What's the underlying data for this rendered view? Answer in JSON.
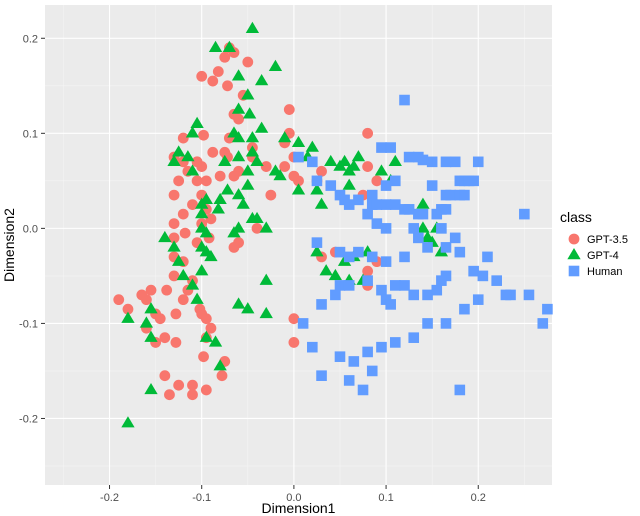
{
  "chart_data": {
    "type": "scatter",
    "title": "",
    "xlabel": "Dimension1",
    "ylabel": "Dimension2",
    "xlim": [
      -0.27,
      0.28
    ],
    "ylim": [
      -0.27,
      0.235
    ],
    "x_ticks": [
      -0.2,
      -0.1,
      0.0,
      0.1,
      0.2
    ],
    "x_tick_labels": [
      "-0.2",
      "-0.1",
      "0.0",
      "0.1",
      "0.2"
    ],
    "y_ticks": [
      -0.2,
      -0.1,
      0.0,
      0.1,
      0.2
    ],
    "y_tick_labels": [
      "-0.2",
      "-0.1",
      "0.0",
      "0.1",
      "0.2"
    ],
    "grid": true,
    "background": "#ebebeb",
    "legend": {
      "title": "class",
      "position": "right",
      "entries": [
        {
          "label": "GPT-3.5",
          "color": "#f8766d",
          "shape": "circle"
        },
        {
          "label": "GPT-4",
          "color": "#00ba38",
          "shape": "triangle"
        },
        {
          "label": "Human",
          "color": "#619cff",
          "shape": "square"
        }
      ]
    },
    "series": [
      {
        "name": "GPT-3.5",
        "color": "#f8766d",
        "shape": "circle",
        "points": [
          [
            -0.065,
            0.185
          ],
          [
            -0.075,
            0.18
          ],
          [
            -0.07,
            0.19
          ],
          [
            -0.082,
            0.165
          ],
          [
            -0.1,
            0.16
          ],
          [
            -0.088,
            0.155
          ],
          [
            -0.072,
            0.15
          ],
          [
            -0.05,
            0.175
          ],
          [
            -0.055,
            0.14
          ],
          [
            -0.06,
            0.115
          ],
          [
            -0.065,
            0.12
          ],
          [
            -0.07,
            0.095
          ],
          [
            -0.098,
            0.098
          ],
          [
            -0.12,
            0.095
          ],
          [
            -0.13,
            0.075
          ],
          [
            -0.12,
            0.07
          ],
          [
            -0.105,
            0.07
          ],
          [
            -0.1,
            0.065
          ],
          [
            -0.075,
            0.08
          ],
          [
            -0.072,
            0.075
          ],
          [
            -0.088,
            0.08
          ],
          [
            -0.045,
            0.075
          ],
          [
            -0.045,
            0.085
          ],
          [
            -0.03,
            0.065
          ],
          [
            -0.06,
            0.06
          ],
          [
            -0.065,
            0.055
          ],
          [
            -0.08,
            0.055
          ],
          [
            -0.095,
            0.05
          ],
          [
            -0.105,
            0.05
          ],
          [
            -0.115,
            0.06
          ],
          [
            -0.125,
            0.05
          ],
          [
            -0.13,
            0.035
          ],
          [
            -0.1,
            0.035
          ],
          [
            -0.11,
            0.025
          ],
          [
            -0.095,
            0.02
          ],
          [
            -0.1,
            0.005
          ],
          [
            -0.09,
            0.01
          ],
          [
            -0.12,
            0.015
          ],
          [
            -0.13,
            0.005
          ],
          [
            -0.118,
            -0.005
          ],
          [
            -0.13,
            -0.01
          ],
          [
            -0.092,
            -0.01
          ],
          [
            -0.105,
            -0.015
          ],
          [
            -0.13,
            -0.03
          ],
          [
            -0.12,
            -0.035
          ],
          [
            -0.06,
            -0.015
          ],
          [
            -0.065,
            -0.02
          ],
          [
            -0.04,
            0.0
          ],
          [
            -0.025,
            0.035
          ],
          [
            -0.01,
            0.065
          ],
          [
            0.0,
            0.075
          ],
          [
            -0.01,
            0.09
          ],
          [
            -0.005,
            0.1
          ],
          [
            -0.005,
            0.125
          ],
          [
            0.03,
            0.06
          ],
          [
            0.025,
            0.05
          ],
          [
            0.005,
            0.05
          ],
          [
            0.0,
            0.055
          ],
          [
            0.08,
            0.065
          ],
          [
            0.08,
            0.1
          ],
          [
            0.09,
            0.05
          ],
          [
            0.075,
            0.035
          ],
          [
            -0.11,
            -0.055
          ],
          [
            -0.115,
            -0.065
          ],
          [
            -0.13,
            -0.05
          ],
          [
            -0.138,
            -0.065
          ],
          [
            -0.12,
            -0.075
          ],
          [
            -0.155,
            -0.065
          ],
          [
            -0.16,
            -0.075
          ],
          [
            -0.165,
            -0.07
          ],
          [
            -0.19,
            -0.075
          ],
          [
            -0.18,
            -0.085
          ],
          [
            -0.15,
            -0.09
          ],
          [
            -0.145,
            -0.095
          ],
          [
            -0.128,
            -0.09
          ],
          [
            -0.1,
            -0.09
          ],
          [
            -0.095,
            -0.095
          ],
          [
            -0.09,
            -0.105
          ],
          [
            -0.102,
            -0.085
          ],
          [
            -0.14,
            -0.115
          ],
          [
            -0.16,
            -0.105
          ],
          [
            -0.128,
            -0.12
          ],
          [
            -0.095,
            -0.115
          ],
          [
            -0.098,
            -0.135
          ],
          [
            -0.15,
            -0.12
          ],
          [
            -0.075,
            -0.14
          ],
          [
            -0.078,
            -0.155
          ],
          [
            -0.095,
            -0.17
          ],
          [
            -0.11,
            -0.165
          ],
          [
            -0.11,
            -0.175
          ],
          [
            -0.14,
            -0.155
          ],
          [
            -0.125,
            -0.165
          ],
          [
            -0.135,
            -0.175
          ],
          [
            0.0,
            -0.12
          ],
          [
            0.0,
            -0.095
          ],
          [
            0.03,
            -0.03
          ],
          [
            0.045,
            -0.025
          ],
          [
            0.08,
            -0.045
          ],
          [
            0.08,
            -0.06
          ],
          [
            0.09,
            -0.035
          ]
        ]
      },
      {
        "name": "GPT-4",
        "color": "#00ba38",
        "shape": "triangle",
        "points": [
          [
            -0.045,
            0.21
          ],
          [
            -0.085,
            0.19
          ],
          [
            -0.07,
            0.19
          ],
          [
            -0.02,
            0.17
          ],
          [
            -0.06,
            0.16
          ],
          [
            -0.035,
            0.155
          ],
          [
            -0.05,
            0.14
          ],
          [
            -0.06,
            0.125
          ],
          [
            -0.048,
            0.12
          ],
          [
            -0.105,
            0.11
          ],
          [
            -0.11,
            0.1
          ],
          [
            -0.065,
            0.1
          ],
          [
            -0.06,
            0.095
          ],
          [
            -0.045,
            0.095
          ],
          [
            -0.035,
            0.105
          ],
          [
            -0.125,
            0.08
          ],
          [
            -0.13,
            0.07
          ],
          [
            -0.115,
            0.075
          ],
          [
            -0.11,
            0.06
          ],
          [
            -0.075,
            0.07
          ],
          [
            -0.06,
            0.075
          ],
          [
            -0.05,
            0.06
          ],
          [
            -0.045,
            0.08
          ],
          [
            -0.04,
            0.07
          ],
          [
            -0.01,
            0.095
          ],
          [
            0.005,
            0.09
          ],
          [
            0.015,
            0.075
          ],
          [
            0.02,
            0.085
          ],
          [
            0.04,
            0.07
          ],
          [
            0.05,
            0.065
          ],
          [
            0.055,
            0.07
          ],
          [
            0.06,
            0.06
          ],
          [
            0.065,
            0.065
          ],
          [
            0.07,
            0.075
          ],
          [
            0.06,
            0.045
          ],
          [
            0.095,
            0.06
          ],
          [
            0.105,
            0.05
          ],
          [
            0.11,
            0.07
          ],
          [
            -0.02,
            0.06
          ],
          [
            -0.015,
            0.055
          ],
          [
            0.005,
            0.04
          ],
          [
            0.025,
            0.04
          ],
          [
            0.03,
            0.025
          ],
          [
            -0.05,
            0.045
          ],
          [
            -0.06,
            0.035
          ],
          [
            -0.072,
            0.04
          ],
          [
            -0.08,
            0.03
          ],
          [
            -0.082,
            0.02
          ],
          [
            -0.095,
            0.03
          ],
          [
            -0.1,
            0.025
          ],
          [
            -0.1,
            0.015
          ],
          [
            -0.055,
            0.025
          ],
          [
            -0.045,
            0.01
          ],
          [
            -0.04,
            0.01
          ],
          [
            -0.03,
            0.0
          ],
          [
            -0.06,
            0.0
          ],
          [
            -0.065,
            -0.005
          ],
          [
            -0.1,
            0.0
          ],
          [
            -0.095,
            -0.005
          ],
          [
            -0.1,
            -0.02
          ],
          [
            -0.095,
            -0.025
          ],
          [
            -0.09,
            -0.03
          ],
          [
            -0.14,
            -0.01
          ],
          [
            -0.13,
            -0.02
          ],
          [
            -0.125,
            -0.035
          ],
          [
            -0.12,
            -0.05
          ],
          [
            -0.1,
            -0.045
          ],
          [
            -0.11,
            -0.06
          ],
          [
            -0.105,
            -0.075
          ],
          [
            -0.155,
            -0.085
          ],
          [
            -0.16,
            -0.1
          ],
          [
            -0.18,
            -0.095
          ],
          [
            -0.155,
            -0.115
          ],
          [
            -0.095,
            -0.115
          ],
          [
            -0.085,
            -0.12
          ],
          [
            -0.08,
            -0.145
          ],
          [
            -0.06,
            -0.08
          ],
          [
            -0.03,
            -0.055
          ],
          [
            -0.03,
            -0.09
          ],
          [
            0.025,
            -0.025
          ],
          [
            0.035,
            -0.045
          ],
          [
            0.045,
            -0.05
          ],
          [
            0.055,
            -0.035
          ],
          [
            0.06,
            -0.055
          ],
          [
            0.065,
            -0.03
          ],
          [
            0.075,
            -0.055
          ],
          [
            0.08,
            -0.025
          ],
          [
            0.15,
            -0.015
          ],
          [
            0.16,
            -0.025
          ],
          [
            0.155,
            0.0
          ],
          [
            0.14,
            0.025
          ],
          [
            0.14,
            0.0
          ],
          [
            0.145,
            -0.01
          ],
          [
            -0.155,
            -0.17
          ],
          [
            -0.18,
            -0.205
          ],
          [
            -0.05,
            -0.085
          ]
        ]
      },
      {
        "name": "Human",
        "color": "#619cff",
        "shape": "square",
        "points": [
          [
            0.12,
            0.135
          ],
          [
            0.095,
            0.085
          ],
          [
            0.105,
            0.085
          ],
          [
            0.125,
            0.075
          ],
          [
            0.135,
            0.075
          ],
          [
            0.14,
            0.072
          ],
          [
            0.15,
            0.07
          ],
          [
            0.165,
            0.07
          ],
          [
            0.175,
            0.07
          ],
          [
            0.2,
            0.07
          ],
          [
            0.18,
            0.05
          ],
          [
            0.185,
            0.05
          ],
          [
            0.19,
            0.05
          ],
          [
            0.195,
            0.05
          ],
          [
            0.15,
            0.045
          ],
          [
            0.165,
            0.035
          ],
          [
            0.17,
            0.035
          ],
          [
            0.18,
            0.035
          ],
          [
            0.185,
            0.035
          ],
          [
            0.085,
            0.035
          ],
          [
            0.1,
            0.045
          ],
          [
            0.11,
            0.05
          ],
          [
            0.005,
            0.075
          ],
          [
            0.02,
            0.07
          ],
          [
            0.025,
            0.05
          ],
          [
            0.04,
            0.045
          ],
          [
            0.05,
            0.035
          ],
          [
            0.055,
            0.03
          ],
          [
            0.06,
            0.025
          ],
          [
            0.07,
            0.03
          ],
          [
            0.085,
            0.025
          ],
          [
            0.09,
            0.025
          ],
          [
            0.1,
            0.025
          ],
          [
            0.11,
            0.025
          ],
          [
            0.12,
            0.02
          ],
          [
            0.125,
            0.02
          ],
          [
            0.135,
            0.015
          ],
          [
            0.14,
            0.015
          ],
          [
            0.155,
            0.015
          ],
          [
            0.16,
            0.02
          ],
          [
            0.165,
            0.02
          ],
          [
            0.08,
            0.015
          ],
          [
            0.09,
            0.005
          ],
          [
            0.1,
            0.0
          ],
          [
            0.13,
            0.0
          ],
          [
            0.16,
            0.0
          ],
          [
            0.175,
            -0.01
          ],
          [
            0.135,
            -0.01
          ],
          [
            0.145,
            -0.02
          ],
          [
            0.165,
            -0.02
          ],
          [
            0.18,
            -0.025
          ],
          [
            0.21,
            -0.03
          ],
          [
            0.25,
            0.015
          ],
          [
            0.025,
            -0.015
          ],
          [
            0.05,
            -0.025
          ],
          [
            0.06,
            -0.03
          ],
          [
            0.07,
            -0.025
          ],
          [
            0.085,
            -0.03
          ],
          [
            0.1,
            -0.035
          ],
          [
            0.12,
            -0.03
          ],
          [
            0.165,
            -0.05
          ],
          [
            0.195,
            -0.045
          ],
          [
            0.205,
            -0.05
          ],
          [
            0.22,
            -0.055
          ],
          [
            0.235,
            -0.07
          ],
          [
            0.2,
            -0.075
          ],
          [
            0.185,
            -0.085
          ],
          [
            0.165,
            -0.1
          ],
          [
            0.23,
            -0.07
          ],
          [
            0.255,
            -0.07
          ],
          [
            0.275,
            -0.085
          ],
          [
            0.27,
            -0.1
          ],
          [
            0.01,
            -0.1
          ],
          [
            0.03,
            -0.08
          ],
          [
            0.045,
            -0.07
          ],
          [
            0.05,
            -0.06
          ],
          [
            0.06,
            -0.06
          ],
          [
            0.08,
            -0.055
          ],
          [
            0.095,
            -0.065
          ],
          [
            0.1,
            -0.075
          ],
          [
            0.105,
            -0.08
          ],
          [
            0.11,
            -0.06
          ],
          [
            0.12,
            -0.06
          ],
          [
            0.13,
            -0.07
          ],
          [
            0.145,
            -0.07
          ],
          [
            0.155,
            -0.065
          ],
          [
            0.16,
            -0.055
          ],
          [
            0.02,
            -0.125
          ],
          [
            0.05,
            -0.135
          ],
          [
            0.065,
            -0.14
          ],
          [
            0.08,
            -0.13
          ],
          [
            0.095,
            -0.125
          ],
          [
            0.11,
            -0.12
          ],
          [
            0.13,
            -0.115
          ],
          [
            0.145,
            -0.1
          ],
          [
            0.03,
            -0.155
          ],
          [
            0.06,
            -0.16
          ],
          [
            0.075,
            -0.17
          ],
          [
            0.085,
            -0.15
          ],
          [
            0.18,
            -0.17
          ]
        ]
      }
    ]
  }
}
